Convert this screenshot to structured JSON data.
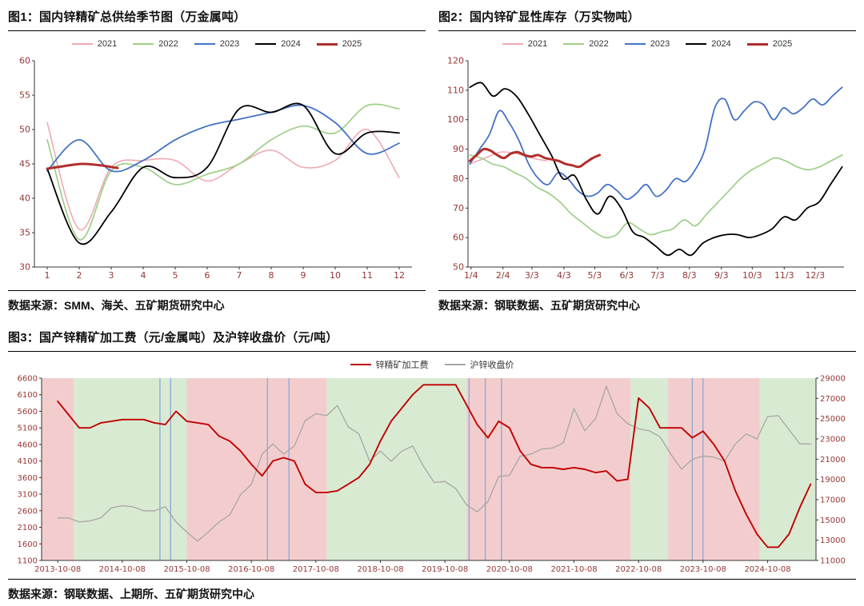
{
  "page": {
    "background": "#ffffff"
  },
  "chart_data": [
    {
      "id": "fig1",
      "type": "line",
      "title": "图1：国内锌精矿总供给季节图（万金属吨）",
      "source": "数据来源：SMM、海关、五矿期货研究中心",
      "legend_position": "top",
      "label_color": "#953735",
      "x": {
        "min": 0.6,
        "max": 12.4,
        "ticks": [
          [
            1,
            "1"
          ],
          [
            2,
            "2"
          ],
          [
            3,
            "3"
          ],
          [
            4,
            "4"
          ],
          [
            5,
            "5"
          ],
          [
            6,
            "6"
          ],
          [
            7,
            "7"
          ],
          [
            8,
            "8"
          ],
          [
            9,
            "9"
          ],
          [
            10,
            "10"
          ],
          [
            11,
            "11"
          ],
          [
            12,
            "12"
          ]
        ]
      },
      "y": {
        "left": {
          "min": 30,
          "max": 60,
          "step": 5
        }
      },
      "axes": [
        "left",
        "bottom"
      ],
      "series": [
        {
          "name": "2021",
          "color": "#F2A8B2",
          "width": 1.6,
          "smooth": true,
          "x_range": [
            1,
            12
          ],
          "values": [
            51,
            35.5,
            44.5,
            45.5,
            45.5,
            42.5,
            45,
            47,
            44.5,
            45.5,
            50,
            43
          ]
        },
        {
          "name": "2022",
          "color": "#9DCF87",
          "width": 1.7,
          "smooth": true,
          "x_range": [
            1,
            12
          ],
          "values": [
            48.5,
            34,
            44,
            44.5,
            42,
            43.5,
            45,
            48.5,
            50.5,
            49.5,
            53.5,
            53
          ]
        },
        {
          "name": "2023",
          "color": "#4472C4",
          "width": 1.8,
          "smooth": true,
          "x_range": [
            1,
            12
          ],
          "values": [
            44,
            48.5,
            44,
            45.5,
            48.5,
            50.5,
            51.5,
            52.5,
            53.5,
            51,
            46.5,
            48
          ]
        },
        {
          "name": "2024",
          "color": "#000000",
          "width": 1.8,
          "smooth": true,
          "x_range": [
            1,
            12
          ],
          "values": [
            44.3,
            33.5,
            38,
            44.5,
            43,
            44.5,
            53,
            52.5,
            53.5,
            46.5,
            49.5,
            49.5
          ]
        },
        {
          "name": "2025",
          "color": "#B02E2B",
          "width": 3,
          "smooth": true,
          "x_range": [
            1,
            3.2
          ],
          "values": [
            44.3,
            44.7,
            45,
            44.8,
            44.4
          ]
        }
      ]
    },
    {
      "id": "fig2",
      "type": "line",
      "title": "图2：国内锌矿显性库存（万实物吨）",
      "source": "数据来源：钢联数据、五矿期货研究中心",
      "legend_position": "top",
      "label_color": "#953735",
      "x": {
        "min": 0,
        "max": 1,
        "ticks": [
          [
            0.008,
            "1/4"
          ],
          [
            0.093,
            "2/4"
          ],
          [
            0.17,
            "3/3"
          ],
          [
            0.255,
            "4/3"
          ],
          [
            0.337,
            "5/3"
          ],
          [
            0.422,
            "6/3"
          ],
          [
            0.504,
            "7/3"
          ],
          [
            0.589,
            "8/3"
          ],
          [
            0.674,
            "9/3"
          ],
          [
            0.756,
            "10/3"
          ],
          [
            0.841,
            "11/3"
          ],
          [
            0.923,
            "12/3"
          ]
        ]
      },
      "y": {
        "left": {
          "min": 50,
          "max": 120,
          "step": 10
        }
      },
      "axes": [
        "left",
        "bottom"
      ],
      "series": [
        {
          "name": "2021",
          "color": "#F2A8B2",
          "width": 1.5,
          "smooth": true,
          "x_range": [
            0.005,
            0.21
          ],
          "values": [
            85,
            87,
            89,
            88.5,
            87,
            86
          ]
        },
        {
          "name": "2022",
          "color": "#9DCF87",
          "width": 1.7,
          "smooth": true,
          "x_range": [
            0.005,
            0.995
          ],
          "values": [
            88,
            87,
            85,
            84,
            82,
            80,
            77,
            75,
            72,
            68,
            65,
            62,
            60,
            61,
            65,
            63,
            61,
            62,
            63,
            66,
            64,
            68,
            72,
            76,
            80,
            83,
            85,
            87,
            86,
            84,
            83,
            84,
            86,
            88
          ]
        },
        {
          "name": "2023",
          "color": "#4472C4",
          "width": 1.8,
          "smooth": true,
          "x_range": [
            0.005,
            0.995
          ],
          "values": [
            85,
            90,
            95,
            103,
            99,
            93,
            85,
            80,
            78,
            82,
            80,
            76,
            74,
            75,
            78,
            76,
            73,
            75,
            78,
            74,
            76,
            80,
            79,
            83,
            90,
            104,
            107,
            100,
            103,
            106,
            105,
            100,
            104,
            102,
            104,
            107,
            105,
            108,
            111
          ]
        },
        {
          "name": "2024",
          "color": "#000000",
          "width": 1.8,
          "smooth": true,
          "x_range": [
            0.005,
            0.995
          ],
          "values": [
            111,
            112.5,
            108,
            110.5,
            108,
            102,
            95,
            88,
            80,
            81,
            73,
            68,
            74,
            70,
            62,
            60,
            57,
            54,
            56,
            54,
            58,
            60,
            61,
            61,
            60,
            61,
            63,
            67,
            66,
            70,
            72,
            78,
            84
          ]
        },
        {
          "name": "2025",
          "color": "#B02E2B",
          "width": 3,
          "smooth": true,
          "x_range": [
            0.005,
            0.35
          ],
          "values": [
            86,
            88,
            90,
            89.5,
            88,
            87,
            88.5,
            89,
            88,
            87.5,
            88,
            87,
            86.5,
            86,
            85,
            84.5,
            84,
            85.5,
            87,
            88
          ]
        }
      ]
    },
    {
      "id": "fig3",
      "type": "line",
      "title": "图3：国产锌精矿加工费（元/金属吨）及沪锌收盘价（元/吨）",
      "source": "数据来源：钢联数据、上期所、五矿期货研究中心",
      "legend_position": "top",
      "label_color": "#953735",
      "vline_color": "#8FAADC",
      "band_colors": {
        "up": "#D9EAD3",
        "down": "#F3CDCD"
      },
      "x": {
        "min": -3,
        "max": 141,
        "ticks": [
          [
            0,
            "2013-10-08"
          ],
          [
            12,
            "2014-10-08"
          ],
          [
            24,
            "2015-10-08"
          ],
          [
            36,
            "2016-10-08"
          ],
          [
            48,
            "2017-10-08"
          ],
          [
            60,
            "2018-10-08"
          ],
          [
            72,
            "2019-10-08"
          ],
          [
            84,
            "2020-10-08"
          ],
          [
            96,
            "2021-10-08"
          ],
          [
            108,
            "2022-10-08"
          ],
          [
            120,
            "2023-10-08"
          ],
          [
            132,
            "2024-10-08"
          ]
        ]
      },
      "y": {
        "left": {
          "min": 1100,
          "max": 6600,
          "step": 500
        },
        "right": {
          "min": 11000,
          "max": 29000,
          "step": 2000
        }
      },
      "axes": [
        "left",
        "bottom",
        "right"
      ],
      "bands": [
        {
          "from": -3,
          "to": 3,
          "color": "#F3CDCD"
        },
        {
          "from": 3,
          "to": 24,
          "color": "#D9EAD3"
        },
        {
          "from": 24,
          "to": 50,
          "color": "#F3CDCD"
        },
        {
          "from": 50,
          "to": 76,
          "color": "#D9EAD3"
        },
        {
          "from": 76,
          "to": 106.5,
          "color": "#F3CDCD"
        },
        {
          "from": 106.5,
          "to": 113.5,
          "color": "#D9EAD3"
        },
        {
          "from": 113.5,
          "to": 130.5,
          "color": "#F3CDCD"
        },
        {
          "from": 130.5,
          "to": 141,
          "color": "#D9EAD3"
        }
      ],
      "vlines": [
        19,
        21,
        39,
        43,
        76.5,
        79.5,
        82.5,
        118,
        120
      ],
      "series": [
        {
          "name": "沪锌收盘价",
          "color": "#A6A6A6",
          "width": 1.3,
          "smooth": false,
          "axis": "right",
          "x_range": [
            0,
            140
          ],
          "values": [
            15200,
            15200,
            14800,
            14900,
            15200,
            16200,
            16400,
            16300,
            15900,
            15900,
            16300,
            14800,
            13800,
            12900,
            13800,
            14800,
            15500,
            17500,
            18500,
            21500,
            22500,
            21500,
            22300,
            24800,
            25500,
            25300,
            26300,
            24200,
            23500,
            20800,
            21800,
            20800,
            21800,
            22300,
            20300,
            18700,
            18800,
            18100,
            16500,
            15800,
            16800,
            19300,
            19400,
            21300,
            21500,
            22000,
            22100,
            22600,
            26000,
            23800,
            25000,
            28200,
            25500,
            24500,
            24000,
            23800,
            23200,
            21500,
            20000,
            21000,
            21300,
            21200,
            20800,
            22500,
            23500,
            23000,
            25200,
            25300,
            23900,
            22500,
            22500
          ]
        },
        {
          "name": "锌精矿加工费",
          "color": "#C00000",
          "width": 1.9,
          "smooth": false,
          "axis": "left",
          "x_range": [
            0,
            140
          ],
          "values": [
            5900,
            5500,
            5100,
            5100,
            5250,
            5300,
            5350,
            5350,
            5350,
            5250,
            5200,
            5600,
            5300,
            5250,
            5200,
            4850,
            4700,
            4400,
            4000,
            3650,
            4100,
            4200,
            4100,
            3400,
            3150,
            3150,
            3200,
            3400,
            3600,
            4000,
            4700,
            5300,
            5700,
            6100,
            6400,
            6400,
            6400,
            6400,
            5800,
            5200,
            4800,
            5300,
            5100,
            4400,
            4000,
            3900,
            3900,
            3850,
            3900,
            3850,
            3750,
            3800,
            3500,
            3550,
            6000,
            5700,
            5100,
            5100,
            5100,
            4800,
            5000,
            4600,
            4100,
            3200,
            2500,
            1900,
            1500,
            1500,
            1900,
            2700,
            3400
          ]
        }
      ],
      "legend_order": [
        "锌精矿加工费",
        "沪锌收盘价"
      ]
    }
  ]
}
